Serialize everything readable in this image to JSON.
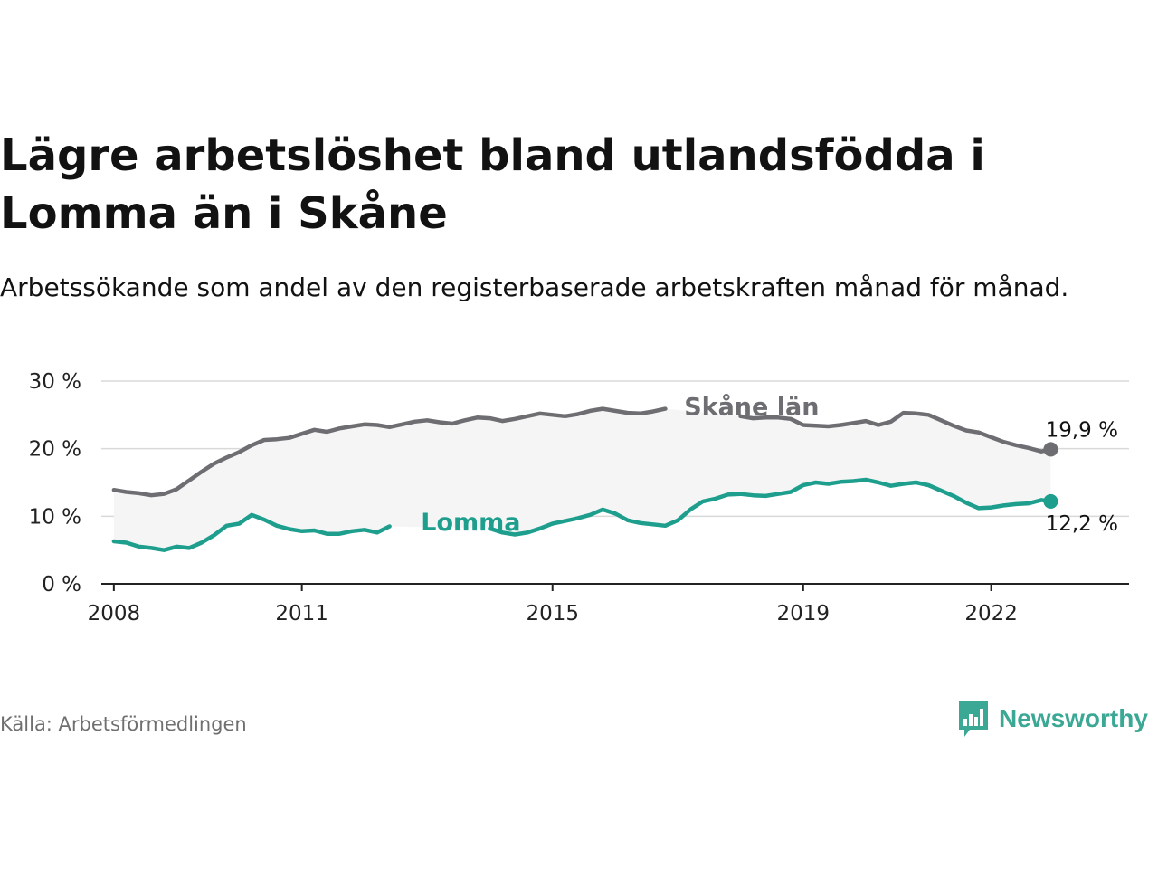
{
  "title": "Lägre arbetslöshet bland utlandsfödda i Lomma än i Skåne",
  "subtitle": "Arbetssökande som andel av den registerbaserade arbetskraften månad för månad.",
  "source": "Källa: Arbetsförmedlingen",
  "brand": {
    "name": "Newsworthy",
    "icon": "newsworthy-logo-icon",
    "color": "#3aa894"
  },
  "chart_data": {
    "type": "line",
    "title": "Lägre arbetslöshet bland utlandsfödda i Lomma än i Skåne",
    "xlabel": "",
    "ylabel": "",
    "xlim": [
      2007.8,
      2024.2
    ],
    "ylim": [
      0,
      30
    ],
    "y_ticks": [
      {
        "value": 0,
        "label": "0 %"
      },
      {
        "value": 10,
        "label": "10 %"
      },
      {
        "value": 20,
        "label": "20 %"
      },
      {
        "value": 30,
        "label": "30 %"
      }
    ],
    "x_ticks": [
      {
        "value": 2008,
        "label": "2008"
      },
      {
        "value": 2011,
        "label": "2011"
      },
      {
        "value": 2015,
        "label": "2015"
      },
      {
        "value": 2019,
        "label": "2019"
      },
      {
        "value": 2022,
        "label": "2022"
      }
    ],
    "grid": true,
    "series": [
      {
        "name": "Skåne län",
        "color": "#6e6e72",
        "label_x": 2017.1,
        "label_y": 26.2,
        "end_label": "19,9 %",
        "points": [
          [
            2008.0,
            13.9
          ],
          [
            2008.2,
            13.6
          ],
          [
            2008.4,
            13.4
          ],
          [
            2008.6,
            13.1
          ],
          [
            2008.8,
            13.3
          ],
          [
            2009.0,
            14.0
          ],
          [
            2009.2,
            15.3
          ],
          [
            2009.4,
            16.6
          ],
          [
            2009.6,
            17.8
          ],
          [
            2009.8,
            18.7
          ],
          [
            2010.0,
            19.5
          ],
          [
            2010.2,
            20.5
          ],
          [
            2010.4,
            21.3
          ],
          [
            2010.6,
            21.4
          ],
          [
            2010.8,
            21.6
          ],
          [
            2011.0,
            22.2
          ],
          [
            2011.2,
            22.8
          ],
          [
            2011.4,
            22.5
          ],
          [
            2011.6,
            23.0
          ],
          [
            2011.8,
            23.3
          ],
          [
            2012.0,
            23.6
          ],
          [
            2012.2,
            23.5
          ],
          [
            2012.4,
            23.2
          ],
          [
            2012.6,
            23.6
          ],
          [
            2012.8,
            24.0
          ],
          [
            2013.0,
            24.2
          ],
          [
            2013.2,
            23.9
          ],
          [
            2013.4,
            23.7
          ],
          [
            2013.6,
            24.2
          ],
          [
            2013.8,
            24.6
          ],
          [
            2014.0,
            24.5
          ],
          [
            2014.2,
            24.1
          ],
          [
            2014.4,
            24.4
          ],
          [
            2014.6,
            24.8
          ],
          [
            2014.8,
            25.2
          ],
          [
            2015.0,
            25.0
          ],
          [
            2015.2,
            24.8
          ],
          [
            2015.4,
            25.1
          ],
          [
            2015.6,
            25.6
          ],
          [
            2015.8,
            25.9
          ],
          [
            2016.0,
            25.6
          ],
          [
            2016.2,
            25.3
          ],
          [
            2016.4,
            25.2
          ],
          [
            2016.6,
            25.5
          ],
          [
            2016.8,
            25.9
          ],
          null,
          [
            2018.0,
            24.8
          ],
          [
            2018.2,
            24.5
          ],
          [
            2018.4,
            24.6
          ],
          [
            2018.6,
            24.6
          ],
          [
            2018.8,
            24.4
          ],
          [
            2019.0,
            23.5
          ],
          [
            2019.2,
            23.4
          ],
          [
            2019.4,
            23.3
          ],
          [
            2019.6,
            23.5
          ],
          [
            2019.8,
            23.8
          ],
          [
            2020.0,
            24.1
          ],
          [
            2020.2,
            23.5
          ],
          [
            2020.4,
            24.0
          ],
          [
            2020.6,
            25.3
          ],
          [
            2020.8,
            25.2
          ],
          [
            2021.0,
            25.0
          ],
          [
            2021.2,
            24.2
          ],
          [
            2021.4,
            23.4
          ],
          [
            2021.6,
            22.7
          ],
          [
            2021.8,
            22.4
          ],
          [
            2022.0,
            21.7
          ],
          [
            2022.2,
            21.0
          ],
          [
            2022.4,
            20.5
          ],
          [
            2022.6,
            20.1
          ],
          [
            2022.8,
            19.6
          ],
          [
            2022.95,
            19.9
          ]
        ]
      },
      {
        "name": "Lomma",
        "color": "#1e9e8d",
        "label_x": 2012.9,
        "label_y": 9.1,
        "end_label": "12,2 %",
        "points": [
          [
            2008.0,
            6.3
          ],
          [
            2008.2,
            6.1
          ],
          [
            2008.4,
            5.5
          ],
          [
            2008.6,
            5.3
          ],
          [
            2008.8,
            5.0
          ],
          [
            2009.0,
            5.5
          ],
          [
            2009.2,
            5.3
          ],
          [
            2009.4,
            6.1
          ],
          [
            2009.6,
            7.2
          ],
          [
            2009.8,
            8.6
          ],
          [
            2010.0,
            8.9
          ],
          [
            2010.2,
            10.2
          ],
          [
            2010.4,
            9.5
          ],
          [
            2010.6,
            8.6
          ],
          [
            2010.8,
            8.1
          ],
          [
            2011.0,
            7.8
          ],
          [
            2011.2,
            7.9
          ],
          [
            2011.4,
            7.4
          ],
          [
            2011.6,
            7.4
          ],
          [
            2011.8,
            7.8
          ],
          [
            2012.0,
            8.0
          ],
          [
            2012.2,
            7.6
          ],
          [
            2012.4,
            8.5
          ],
          null,
          [
            2014.0,
            8.2
          ],
          [
            2014.2,
            7.6
          ],
          [
            2014.4,
            7.3
          ],
          [
            2014.6,
            7.6
          ],
          [
            2014.8,
            8.2
          ],
          [
            2015.0,
            8.9
          ],
          [
            2015.2,
            9.3
          ],
          [
            2015.4,
            9.7
          ],
          [
            2015.6,
            10.2
          ],
          [
            2015.8,
            11.0
          ],
          [
            2016.0,
            10.4
          ],
          [
            2016.2,
            9.4
          ],
          [
            2016.4,
            9.0
          ],
          [
            2016.6,
            8.8
          ],
          [
            2016.8,
            8.6
          ],
          [
            2017.0,
            9.4
          ],
          [
            2017.2,
            11.0
          ],
          [
            2017.4,
            12.2
          ],
          [
            2017.6,
            12.6
          ],
          [
            2017.8,
            13.2
          ],
          [
            2018.0,
            13.3
          ],
          [
            2018.2,
            13.1
          ],
          [
            2018.4,
            13.0
          ],
          [
            2018.6,
            13.3
          ],
          [
            2018.8,
            13.6
          ],
          [
            2019.0,
            14.6
          ],
          [
            2019.2,
            15.0
          ],
          [
            2019.4,
            14.8
          ],
          [
            2019.6,
            15.1
          ],
          [
            2019.8,
            15.2
          ],
          [
            2020.0,
            15.4
          ],
          [
            2020.2,
            15.0
          ],
          [
            2020.4,
            14.5
          ],
          [
            2020.6,
            14.8
          ],
          [
            2020.8,
            15.0
          ],
          [
            2021.0,
            14.6
          ],
          [
            2021.2,
            13.8
          ],
          [
            2021.4,
            13.0
          ],
          [
            2021.6,
            12.0
          ],
          [
            2021.8,
            11.2
          ],
          [
            2022.0,
            11.3
          ],
          [
            2022.2,
            11.6
          ],
          [
            2022.4,
            11.8
          ],
          [
            2022.6,
            11.9
          ],
          [
            2022.8,
            12.4
          ],
          [
            2022.95,
            12.2
          ]
        ]
      }
    ],
    "band_color": "#f5f5f6"
  }
}
